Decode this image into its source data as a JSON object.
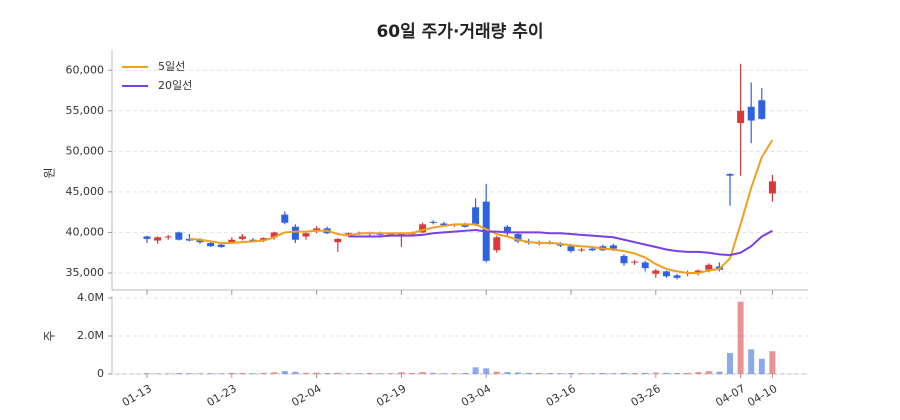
{
  "chart_data": [
    {
      "type": "candlestick",
      "title": "60일 주가·거래량 추이",
      "ylabel": "원",
      "up_color": "#d83a3a",
      "down_color": "#2f62e0",
      "open": [
        39500,
        39000,
        39400,
        40000,
        39200,
        39000,
        38700,
        38500,
        38800,
        39200,
        39100,
        39100,
        39400,
        42200,
        40700,
        39500,
        40200,
        40500,
        38800,
        39800,
        39900,
        39800,
        39900,
        39700,
        39700,
        39800,
        40000,
        41300,
        41100,
        40900,
        41000,
        43100,
        43800,
        37800,
        40700,
        39800,
        38900,
        38600,
        38800,
        38500,
        38300,
        37800,
        38000,
        38300,
        38400,
        37100,
        36300,
        36300,
        34900,
        35200,
        34700,
        35000,
        35100,
        35400,
        35800,
        47200,
        53500,
        55500,
        56300,
        44800
      ],
      "high": [
        39600,
        39500,
        39700,
        40100,
        39800,
        39300,
        39000,
        38800,
        39400,
        39800,
        39300,
        39400,
        40100,
        42600,
        41000,
        40100,
        40800,
        40700,
        39300,
        40000,
        40100,
        40100,
        40100,
        40000,
        39900,
        40100,
        41200,
        41500,
        41300,
        41100,
        41200,
        44200,
        46000,
        39600,
        40900,
        40100,
        39200,
        39000,
        39000,
        38800,
        38600,
        38100,
        38300,
        38500,
        38600,
        37300,
        36600,
        36500,
        35500,
        35300,
        34900,
        35300,
        35400,
        36200,
        36300,
        47300,
        60800,
        58500,
        57800,
        47100
      ],
      "low": [
        38700,
        38600,
        39100,
        39000,
        38900,
        38600,
        38200,
        38100,
        38600,
        39000,
        38800,
        38800,
        39100,
        41000,
        38700,
        39100,
        39900,
        39800,
        37600,
        39600,
        39700,
        39600,
        39500,
        39500,
        38200,
        39600,
        39900,
        41000,
        40800,
        40700,
        40600,
        40800,
        36300,
        37500,
        39500,
        38700,
        38500,
        38400,
        38500,
        38200,
        37500,
        37600,
        37700,
        37700,
        37700,
        35900,
        36000,
        35200,
        34400,
        34400,
        34200,
        34600,
        34700,
        35100,
        35200,
        43300,
        47000,
        51000,
        53900,
        43800
      ],
      "close": [
        39200,
        39400,
        39500,
        39100,
        39000,
        38800,
        38300,
        38200,
        39100,
        39500,
        38900,
        39300,
        40000,
        41200,
        39100,
        39900,
        40500,
        39900,
        39200,
        39900,
        39800,
        40000,
        39700,
        39800,
        39800,
        39900,
        41000,
        41200,
        40900,
        41000,
        40700,
        41000,
        36500,
        39400,
        39900,
        38900,
        38700,
        38800,
        38600,
        38400,
        37700,
        37900,
        37800,
        37800,
        38000,
        36200,
        36400,
        35600,
        35300,
        34600,
        34400,
        35100,
        35300,
        36000,
        35400,
        47000,
        55000,
        53800,
        54000,
        46300
      ],
      "series": [
        {
          "name": "5일선",
          "color": "#f0a020",
          "values": [
            null,
            null,
            null,
            null,
            39200,
            39100,
            38900,
            38700,
            38700,
            38800,
            38900,
            39000,
            39400,
            40000,
            40100,
            40100,
            40200,
            40200,
            39800,
            39600,
            39900,
            39900,
            39900,
            39900,
            39900,
            39900,
            40300,
            40600,
            40800,
            41000,
            41000,
            41000,
            40400,
            39800,
            39500,
            39100,
            38800,
            38700,
            38700,
            38600,
            38400,
            38300,
            38200,
            38000,
            37900,
            37700,
            37400,
            36900,
            36100,
            35500,
            35200,
            35000,
            35000,
            35300,
            35500,
            36800,
            41000,
            45500,
            49300,
            51400
          ]
        },
        {
          "name": "20일선",
          "color": "#7b3fe4",
          "values": [
            null,
            null,
            null,
            null,
            null,
            null,
            null,
            null,
            null,
            null,
            null,
            null,
            null,
            null,
            null,
            null,
            null,
            null,
            null,
            39500,
            39500,
            39500,
            39500,
            39600,
            39600,
            39600,
            39700,
            39900,
            40000,
            40100,
            40200,
            40300,
            40100,
            40100,
            40000,
            40000,
            40000,
            40000,
            39900,
            39900,
            39800,
            39700,
            39600,
            39500,
            39400,
            39100,
            38800,
            38500,
            38200,
            37900,
            37700,
            37600,
            37600,
            37500,
            37300,
            37200,
            37500,
            38300,
            39500,
            40200
          ]
        }
      ],
      "ylim": [
        32900,
        62500
      ],
      "yticks": [
        {
          "value": 35000,
          "label": "35,000"
        },
        {
          "value": 40000,
          "label": "40,000"
        },
        {
          "value": 45000,
          "label": "45,000"
        },
        {
          "value": 50000,
          "label": "50,000"
        },
        {
          "value": 55000,
          "label": "55,000"
        },
        {
          "value": 60000,
          "label": "60,000"
        }
      ],
      "grid": true,
      "legend": "upper left"
    },
    {
      "type": "bar",
      "ylabel": "주",
      "categories": [
        "01-13",
        null,
        null,
        null,
        null,
        null,
        null,
        null,
        "01-23",
        null,
        null,
        null,
        null,
        null,
        null,
        null,
        "02-04",
        null,
        null,
        null,
        null,
        null,
        null,
        null,
        "02-19",
        null,
        null,
        null,
        null,
        null,
        null,
        null,
        "03-04",
        null,
        null,
        null,
        null,
        null,
        null,
        null,
        "03-16",
        null,
        null,
        null,
        null,
        null,
        null,
        null,
        "03-26",
        null,
        null,
        null,
        null,
        null,
        null,
        null,
        "04-07",
        null,
        null,
        "04-10"
      ],
      "values": [
        40000,
        30000,
        30000,
        50000,
        40000,
        30000,
        40000,
        30000,
        60000,
        50000,
        40000,
        60000,
        90000,
        150000,
        120000,
        60000,
        70000,
        50000,
        60000,
        40000,
        40000,
        50000,
        40000,
        40000,
        90000,
        50000,
        100000,
        60000,
        40000,
        40000,
        50000,
        350000,
        300000,
        120000,
        100000,
        80000,
        60000,
        50000,
        50000,
        40000,
        50000,
        40000,
        40000,
        50000,
        40000,
        60000,
        50000,
        60000,
        70000,
        60000,
        50000,
        60000,
        100000,
        150000,
        120000,
        1100000,
        3800000,
        1300000,
        800000,
        1200000
      ],
      "ylim": [
        0,
        4000000
      ],
      "yticks": [
        0,
        {
          "value": 2000000,
          "label": "2.0M"
        },
        {
          "value": 4000000,
          "label": "4.0M"
        }
      ],
      "grid": true
    }
  ]
}
